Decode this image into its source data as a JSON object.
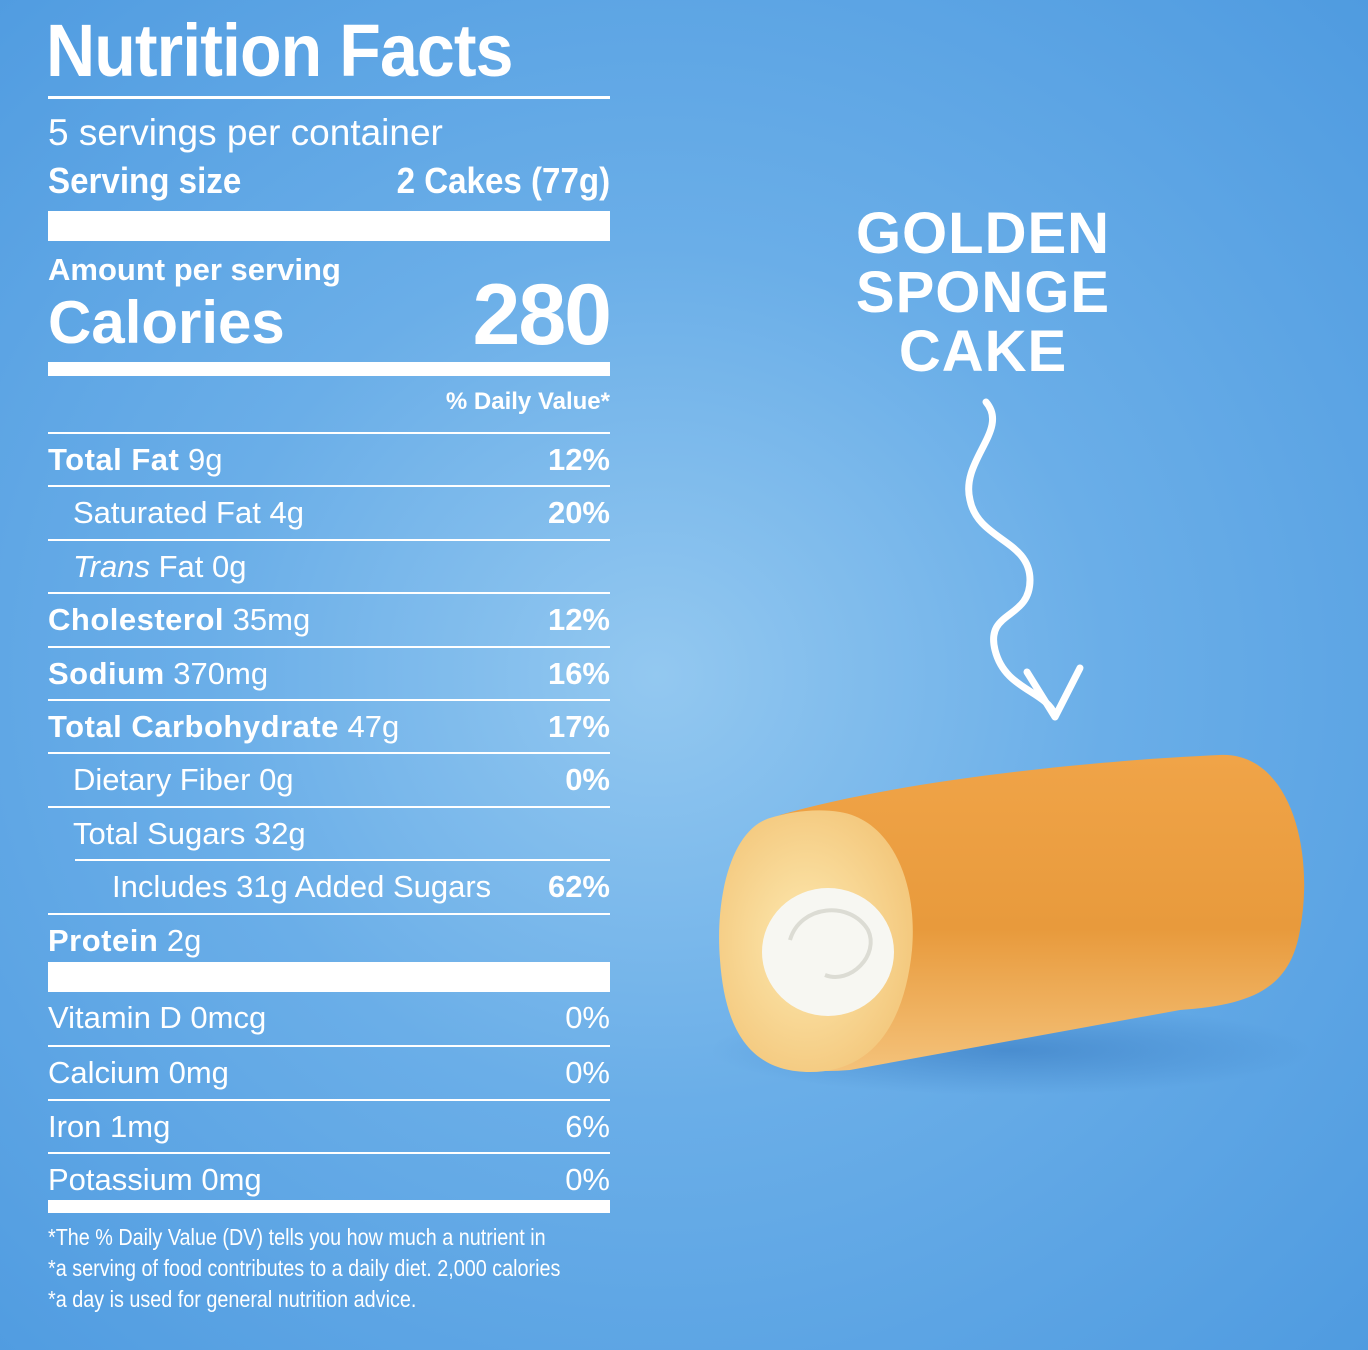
{
  "label": {
    "title": "Nutrition Facts",
    "servings": "5 servings per container",
    "serving_size": {
      "label": "Serving size",
      "value": "2 Cakes (77g)"
    },
    "amount_per_serving": "Amount per serving",
    "calories": {
      "label": "Calories",
      "value": "280"
    },
    "daily_value_header": "% Daily Value*",
    "nutrients": [
      {
        "name": "Total Fat",
        "amount": "9g",
        "dv": "12%",
        "bold": true,
        "indent": 0
      },
      {
        "name": "Saturated Fat",
        "amount": "4g",
        "dv": "20%",
        "bold": false,
        "indent": 1
      },
      {
        "italic": "Trans",
        "name": "Fat",
        "amount": "0g",
        "bold": false,
        "indent": 1
      },
      {
        "name": "Cholesterol",
        "amount": "35mg",
        "dv": "12%",
        "bold": true,
        "indent": 0
      },
      {
        "name": "Sodium",
        "amount": "370mg",
        "dv": "16%",
        "bold": true,
        "indent": 0
      },
      {
        "name": "Total Carbohydrate",
        "amount": "47g",
        "dv": "17%",
        "bold": true,
        "indent": 0
      },
      {
        "name": "Dietary Fiber",
        "amount": "0g",
        "dv": "0%",
        "bold": false,
        "indent": 1
      },
      {
        "name": "Total Sugars",
        "amount": "32g",
        "bold": false,
        "indent": 1
      },
      {
        "name": "Includes 31g Added Sugars",
        "dv": "62%",
        "bold": false,
        "indent": 2
      },
      {
        "name": "Protein",
        "amount": "2g",
        "bold": true,
        "indent": 0
      }
    ],
    "vitamins": [
      {
        "name": "Vitamin D 0mcg",
        "dv": "0%"
      },
      {
        "name": "Calcium 0mg",
        "dv": "0%"
      },
      {
        "name": "Iron 1mg",
        "dv": "6%"
      },
      {
        "name": "Potassium 0mg",
        "dv": "0%"
      }
    ],
    "footnote": [
      "*The % Daily Value (DV) tells you how much a nutrient in",
      "*a serving of food contributes to a daily diet. 2,000 calories",
      "*a day is used for general nutrition advice."
    ]
  },
  "callout": [
    "GOLDEN",
    "SPONGE",
    "CAKE"
  ]
}
